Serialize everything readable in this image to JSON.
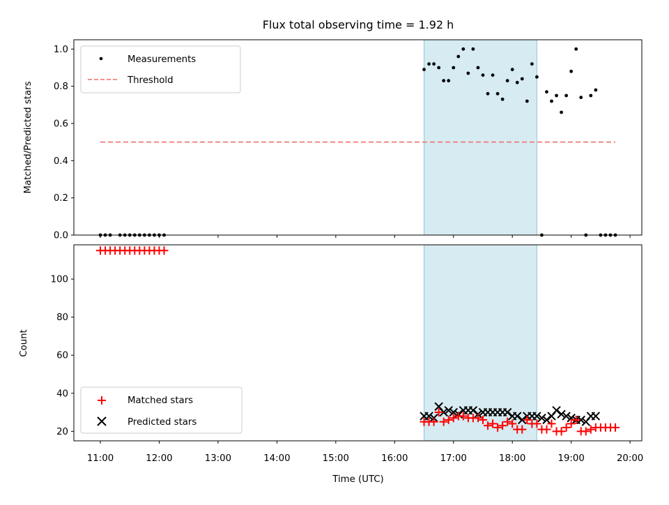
{
  "chart_data": [
    {
      "type": "scatter",
      "title": "Flux total observing time = 1.92 h",
      "xlabel": "",
      "ylabel": "Matched/Predicted stars",
      "ylim": [
        0,
        1.05
      ],
      "yticks": [
        "0.0",
        "0.2",
        "0.4",
        "0.6",
        "0.8",
        "1.0"
      ],
      "grid": false,
      "legend_position": "top-left",
      "shaded_interval": [
        "16:30",
        "18:25"
      ],
      "series": [
        {
          "name": "Measurements",
          "style": "dots",
          "color": "#000000",
          "x": [
            "11:00",
            "11:05",
            "11:10",
            "11:20",
            "11:25",
            "11:30",
            "11:35",
            "11:40",
            "11:45",
            "11:50",
            "11:55",
            "12:00",
            "12:05",
            "16:30",
            "16:35",
            "16:40",
            "16:45",
            "16:50",
            "16:55",
            "17:00",
            "17:05",
            "17:10",
            "17:15",
            "17:20",
            "17:25",
            "17:30",
            "17:35",
            "17:40",
            "17:45",
            "17:50",
            "17:55",
            "18:00",
            "18:05",
            "18:10",
            "18:15",
            "18:20",
            "18:25",
            "18:30",
            "18:35",
            "18:40",
            "18:45",
            "18:50",
            "18:55",
            "19:00",
            "19:05",
            "19:10",
            "19:15",
            "19:20",
            "19:25",
            "19:30",
            "19:35",
            "19:40",
            "19:45"
          ],
          "y": [
            0,
            0,
            0,
            0,
            0,
            0,
            0,
            0,
            0,
            0,
            0,
            0,
            0,
            0.89,
            0.92,
            0.92,
            0.9,
            0.83,
            0.83,
            0.9,
            0.96,
            1.0,
            0.87,
            1.0,
            0.9,
            0.86,
            0.76,
            0.86,
            0.76,
            0.73,
            0.83,
            0.89,
            0.82,
            0.84,
            0.72,
            0.92,
            0.85,
            0,
            0.77,
            0.72,
            0.75,
            0.66,
            0.75,
            0.88,
            1.0,
            0.74,
            0,
            0.75,
            0.78,
            0,
            0,
            0,
            0
          ]
        },
        {
          "name": "Threshold",
          "style": "dashed",
          "color": "#f08080",
          "x": [
            "11:00",
            "19:45"
          ],
          "y": [
            0.5,
            0.5
          ]
        }
      ]
    },
    {
      "type": "scatter",
      "title": "",
      "xlabel": "Time (UTC)",
      "ylabel": "Count",
      "ylim": [
        15,
        118
      ],
      "yticks": [
        "20",
        "40",
        "60",
        "80",
        "100"
      ],
      "xticks": [
        "11:00",
        "12:00",
        "13:00",
        "14:00",
        "15:00",
        "16:00",
        "17:00",
        "18:00",
        "19:00",
        "20:00"
      ],
      "grid": false,
      "legend_position": "bottom-left",
      "shaded_interval": [
        "16:30",
        "18:25"
      ],
      "series": [
        {
          "name": "Matched stars",
          "marker": "+",
          "color": "#ff0000",
          "x": [
            "11:00",
            "11:05",
            "11:10",
            "11:15",
            "11:20",
            "11:25",
            "11:30",
            "11:35",
            "11:40",
            "11:45",
            "11:50",
            "11:55",
            "12:00",
            "12:05",
            "16:30",
            "16:35",
            "16:40",
            "16:45",
            "16:50",
            "16:55",
            "17:00",
            "17:05",
            "17:10",
            "17:15",
            "17:20",
            "17:25",
            "17:30",
            "17:35",
            "17:40",
            "17:45",
            "17:50",
            "17:55",
            "18:00",
            "18:05",
            "18:10",
            "18:15",
            "18:20",
            "18:25",
            "18:30",
            "18:35",
            "18:40",
            "18:45",
            "18:50",
            "18:55",
            "19:00",
            "19:05",
            "19:10",
            "19:15",
            "19:20",
            "19:25",
            "19:30",
            "19:35",
            "19:40",
            "19:45"
          ],
          "y": [
            115,
            115,
            115,
            115,
            115,
            115,
            115,
            115,
            115,
            115,
            115,
            115,
            115,
            115,
            25,
            25,
            25,
            30,
            25,
            26,
            27,
            28,
            28,
            27,
            27,
            27,
            26,
            23,
            24,
            22,
            23,
            25,
            24,
            21,
            21,
            26,
            24,
            24,
            21,
            21,
            24,
            20,
            20,
            22,
            24,
            26,
            20,
            20,
            21,
            22,
            22,
            22,
            22,
            22
          ]
        },
        {
          "name": "Predicted stars",
          "marker": "x",
          "color": "#000000",
          "x": [
            "16:30",
            "16:35",
            "16:40",
            "16:45",
            "16:50",
            "16:55",
            "17:00",
            "17:05",
            "17:10",
            "17:15",
            "17:20",
            "17:25",
            "17:30",
            "17:35",
            "17:40",
            "17:45",
            "17:50",
            "17:55",
            "18:00",
            "18:05",
            "18:10",
            "18:15",
            "18:20",
            "18:25",
            "18:30",
            "18:35",
            "18:40",
            "18:45",
            "18:50",
            "18:55",
            "19:00",
            "19:05",
            "19:10",
            "19:15",
            "19:20",
            "19:25"
          ],
          "y": [
            28,
            28,
            27,
            33,
            30,
            31,
            30,
            29,
            31,
            31,
            31,
            29,
            30,
            30,
            30,
            30,
            30,
            30,
            28,
            28,
            26,
            28,
            28,
            28,
            27,
            26,
            28,
            31,
            29,
            28,
            27,
            26,
            26,
            25,
            28,
            28
          ]
        }
      ]
    }
  ]
}
